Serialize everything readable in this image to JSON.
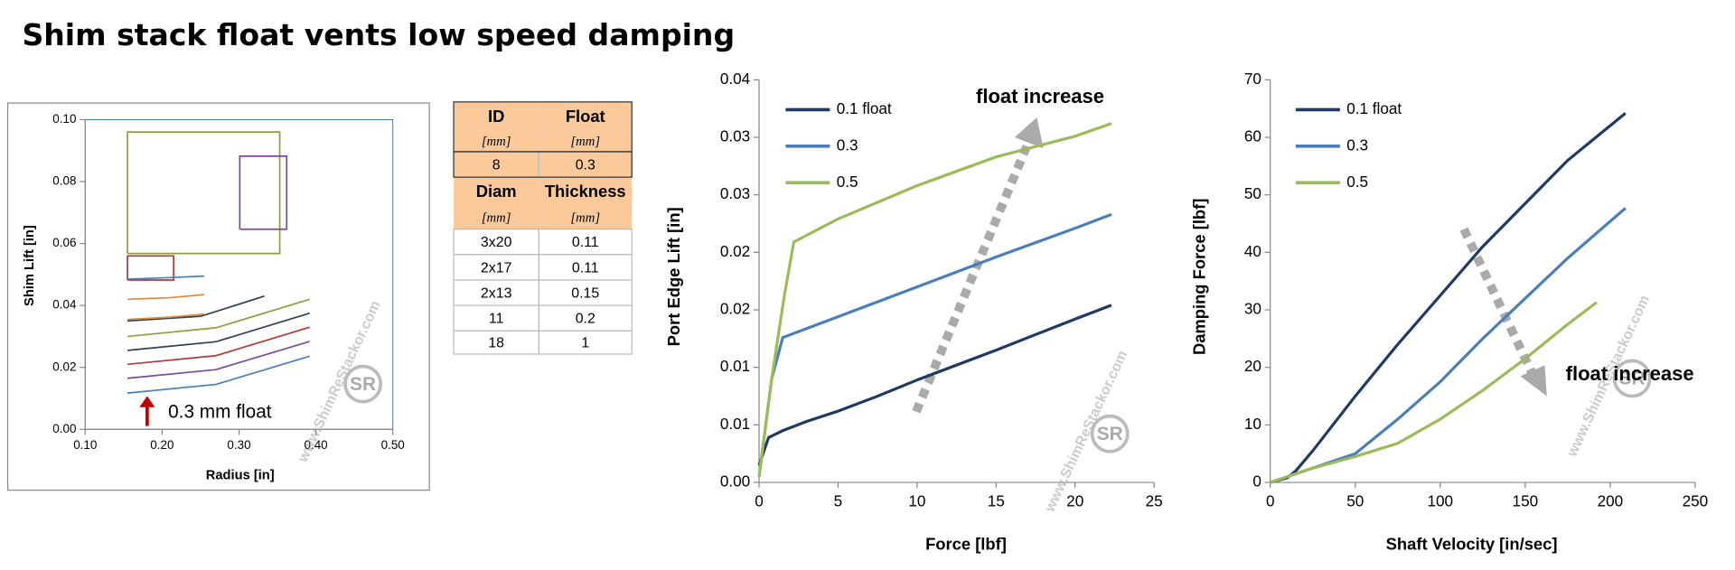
{
  "title": "Shim stack float vents low speed damping",
  "watermark": "www.ShimReStackor.com",
  "logo": "SR",
  "table": {
    "rows": [
      [
        "ID",
        "Float"
      ],
      [
        "[mm]",
        "[mm]"
      ],
      [
        "8",
        "0.3"
      ],
      [
        "Diam",
        "Thickness"
      ],
      [
        "[mm]",
        "[mm]"
      ],
      [
        "3x20",
        "0.11"
      ],
      [
        "2x17",
        "0.11"
      ],
      [
        "2x13",
        "0.15"
      ],
      [
        "11",
        "0.2"
      ],
      [
        "18",
        "1"
      ]
    ]
  },
  "chart_data": [
    {
      "type": "shim",
      "xlabel": "Radius [in]",
      "ylabel": "Shim Lift [in]",
      "annotation": "0.3 mm float",
      "xlim": [
        0.1,
        0.5
      ],
      "xticks": [
        {
          "value": 0.1,
          "label": "0.10"
        },
        {
          "value": 0.2,
          "label": "0.20"
        },
        {
          "value": 0.3,
          "label": "0.30"
        },
        {
          "value": 0.4,
          "label": "0.40"
        },
        {
          "value": 0.5,
          "label": "0.50"
        }
      ],
      "ylim": [
        0,
        0.1
      ],
      "yticks": [
        {
          "value": 0,
          "label": "0.00"
        },
        {
          "value": 0.02,
          "label": "0.02"
        },
        {
          "value": 0.04,
          "label": "0.04"
        },
        {
          "value": 0.06,
          "label": "0.06"
        },
        {
          "value": 0.08,
          "label": "0.08"
        },
        {
          "value": 0.1,
          "label": "0.10"
        }
      ],
      "series": [
        {
          "color": "#8aa23c",
          "x": [
            0.155,
            0.353,
            0.353,
            0.155,
            0.155
          ],
          "values": [
            0.0568,
            0.0568,
            0.096,
            0.096,
            0.0568
          ]
        },
        {
          "color": "#7a4b9a",
          "x": [
            0.301,
            0.362,
            0.362,
            0.301,
            0.301
          ],
          "values": [
            0.0646,
            0.0646,
            0.0882,
            0.0882,
            0.0646
          ]
        },
        {
          "color": "#b03a3a",
          "x": [
            0.155,
            0.215,
            0.215,
            0.155,
            0.155
          ],
          "values": [
            0.0482,
            0.0482,
            0.056,
            0.056,
            0.0482
          ]
        },
        {
          "color": "#4a7ebb",
          "x": [
            0.155,
            0.27,
            0.392
          ],
          "values": [
            0.0117,
            0.0145,
            0.0236
          ]
        },
        {
          "color": "#7a4b9a",
          "x": [
            0.155,
            0.27,
            0.392
          ],
          "values": [
            0.0165,
            0.0193,
            0.0284
          ]
        },
        {
          "color": "#b03a3a",
          "x": [
            0.155,
            0.27,
            0.392
          ],
          "values": [
            0.021,
            0.0238,
            0.033
          ]
        },
        {
          "color": "#2e4057",
          "x": [
            0.155,
            0.27,
            0.392
          ],
          "values": [
            0.0255,
            0.0283,
            0.0375
          ]
        },
        {
          "color": "#8aa23c",
          "x": [
            0.155,
            0.27,
            0.392
          ],
          "values": [
            0.03,
            0.0328,
            0.042
          ]
        },
        {
          "color": "#2e4057",
          "x": [
            0.155,
            0.25,
            0.333
          ],
          "values": [
            0.035,
            0.0365,
            0.043
          ]
        },
        {
          "color": "#e0883a",
          "x": [
            0.155,
            0.21,
            0.255
          ],
          "values": [
            0.0355,
            0.0362,
            0.0372
          ]
        },
        {
          "color": "#e0883a",
          "x": [
            0.155,
            0.21,
            0.255
          ],
          "values": [
            0.042,
            0.0425,
            0.0435
          ]
        },
        {
          "color": "#4a7ebb",
          "x": [
            0.155,
            0.21,
            0.255
          ],
          "values": [
            0.0485,
            0.049,
            0.0495
          ]
        }
      ]
    },
    {
      "type": "line",
      "xlabel": "Force [lbf]",
      "ylabel": "Port Edge Lift [in]",
      "annotation": "float increase",
      "xlim": [
        0,
        25
      ],
      "xticks": [
        0,
        5,
        10,
        15,
        20,
        25
      ],
      "ylim": [
        0,
        0.035
      ],
      "yticks": [
        {
          "value": 0,
          "label": "0.00"
        },
        {
          "value": 0.005,
          "label": "0.01"
        },
        {
          "value": 0.01,
          "label": "0.01"
        },
        {
          "value": 0.015,
          "label": "0.02"
        },
        {
          "value": 0.02,
          "label": "0.02"
        },
        {
          "value": 0.025,
          "label": "0.03"
        },
        {
          "value": 0.03,
          "label": "0.03"
        },
        {
          "value": 0.035,
          "label": "0.04"
        }
      ],
      "series": [
        {
          "name": "0.1 float",
          "color": "#1f3864",
          "x": [
            0,
            0.6,
            1.5,
            3,
            5,
            7.5,
            10,
            15,
            20,
            22.3
          ],
          "values": [
            0.0015,
            0.0039,
            0.0045,
            0.0053,
            0.0062,
            0.0075,
            0.0089,
            0.0115,
            0.0142,
            0.0154
          ]
        },
        {
          "name": "0.3",
          "color": "#4a7ebb",
          "x": [
            0,
            0.8,
            1.5,
            5,
            10,
            15,
            20,
            22.3
          ],
          "values": [
            0.0005,
            0.009,
            0.0126,
            0.0144,
            0.017,
            0.0196,
            0.0221,
            0.0233
          ]
        },
        {
          "name": "0.5",
          "color": "#9bbb59",
          "x": [
            0,
            0.8,
            1.6,
            2.2,
            5,
            10,
            15,
            20,
            22.3
          ],
          "values": [
            0.0005,
            0.009,
            0.0162,
            0.0209,
            0.0229,
            0.0258,
            0.0283,
            0.0301,
            0.0312
          ]
        }
      ]
    },
    {
      "type": "line",
      "xlabel": "Shaft Velocity [in/sec]",
      "ylabel": "Damping Force [lbf]",
      "annotation": "float increase",
      "xlim": [
        0,
        250
      ],
      "xticks": [
        0,
        50,
        100,
        150,
        200,
        250
      ],
      "ylim": [
        0,
        70
      ],
      "yticks": [
        0,
        10,
        20,
        30,
        40,
        50,
        60,
        70
      ],
      "series": [
        {
          "name": "0.1 float",
          "color": "#1f3864",
          "x": [
            0,
            10,
            15,
            25,
            50,
            75,
            100,
            125,
            150,
            175,
            209
          ],
          "values": [
            0,
            0.8,
            2,
            5.5,
            15,
            24,
            32.5,
            41,
            48.5,
            56,
            64.2
          ]
        },
        {
          "name": "0.3",
          "color": "#4a7ebb",
          "x": [
            0,
            25,
            50,
            75,
            100,
            125,
            150,
            175,
            209
          ],
          "values": [
            0,
            2.5,
            5,
            11,
            17.5,
            25,
            32,
            39,
            47.7
          ]
        },
        {
          "name": "0.5",
          "color": "#9bbb59",
          "x": [
            0,
            25,
            50,
            75,
            100,
            125,
            150,
            175,
            192
          ],
          "values": [
            0,
            2.5,
            4.5,
            6.8,
            11,
            16,
            21.5,
            27.5,
            31.3
          ]
        }
      ]
    }
  ]
}
